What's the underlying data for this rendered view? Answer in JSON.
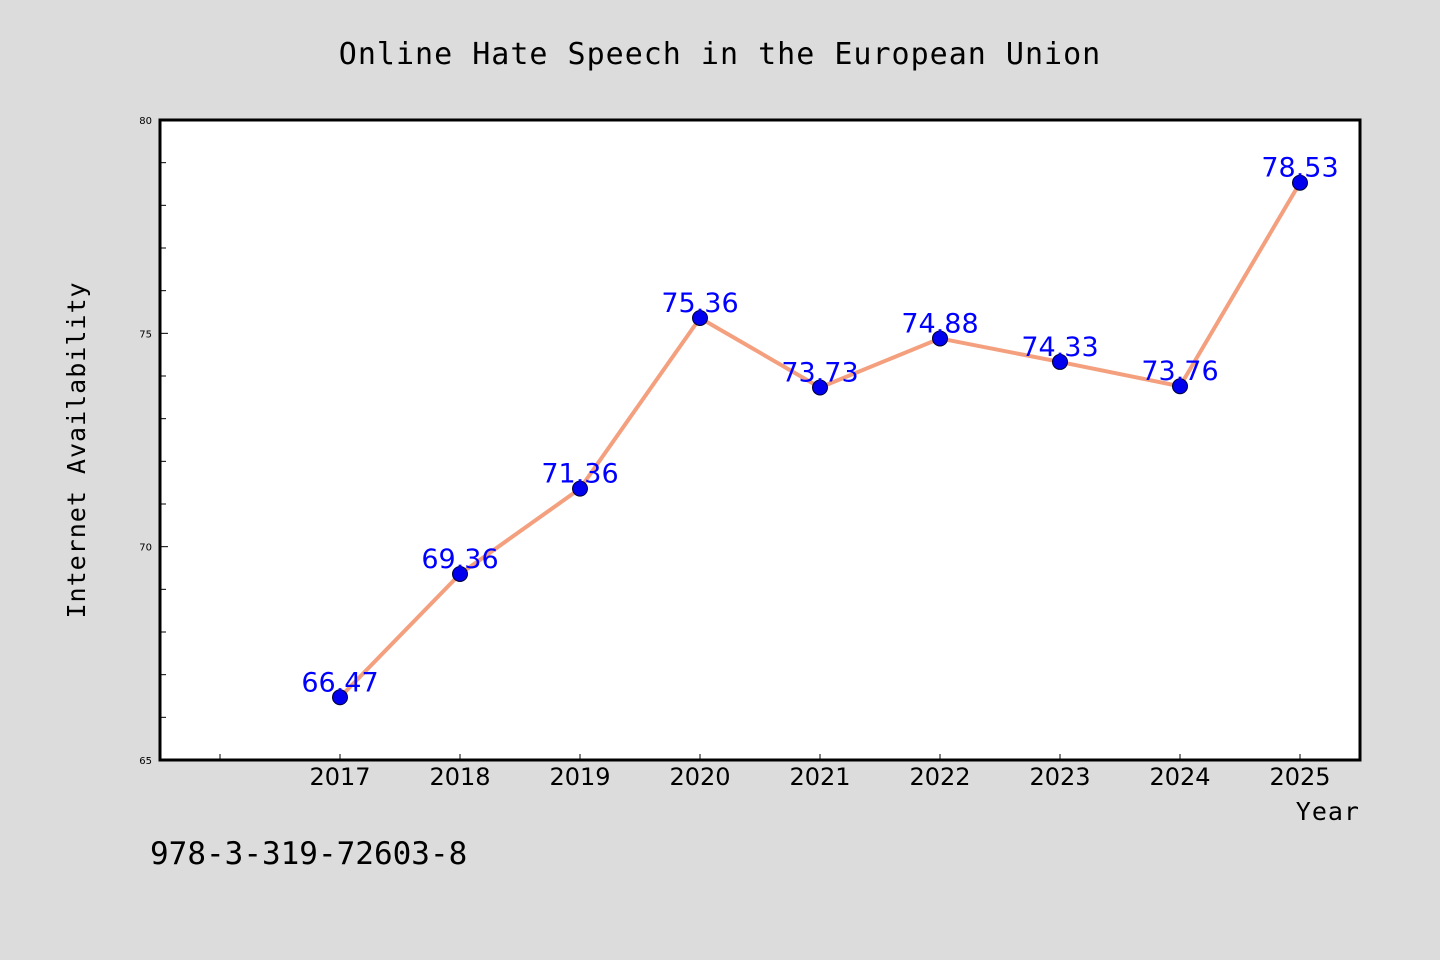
{
  "chart_data": {
    "type": "line",
    "title": "Online Hate Speech in the European Union",
    "xlabel": "Year",
    "ylabel": "Internet Availability",
    "categories": [
      "2017",
      "2018",
      "2019",
      "2020",
      "2021",
      "2022",
      "2023",
      "2024",
      "2025"
    ],
    "series": [
      {
        "values": [
          66.47,
          69.36,
          71.36,
          75.36,
          73.73,
          74.88,
          74.33,
          73.76,
          78.53
        ],
        "labels": [
          "66.47",
          "69.36",
          "71.36",
          "75.36",
          "73.73",
          "74.88",
          "74.33",
          "73.76",
          "78.53"
        ],
        "line_color": "#f4a07e",
        "marker_color": "#0000ee"
      }
    ],
    "yticks": [
      "65",
      "70",
      "75",
      "80"
    ],
    "ylim": [
      65,
      80
    ],
    "grid": false,
    "legend": "none"
  },
  "annotation": {
    "isbn": "978-3-319-72603-8"
  },
  "colors": {
    "background": "#dcdcdc",
    "plot_area": "#ffffff",
    "data_label": "#0000ff"
  }
}
